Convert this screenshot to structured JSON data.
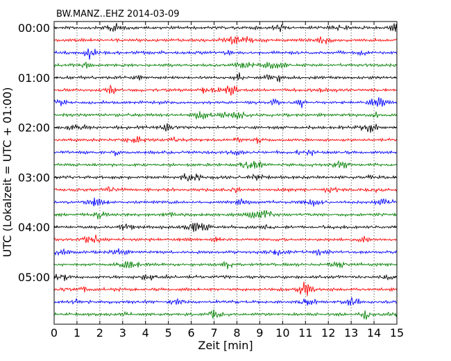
{
  "chart_data": {
    "type": "line",
    "title": "BW.MANZ..EHZ 2014-03-09",
    "xlabel": "Zeit  [min]",
    "ylabel": "UTC (Lokalzeit = UTC + 01:00)",
    "xlim": [
      0,
      15
    ],
    "x_ticks": [
      "0",
      "1",
      "2",
      "3",
      "4",
      "5",
      "6",
      "7",
      "8",
      "9",
      "10",
      "11",
      "12",
      "13",
      "14",
      "15"
    ],
    "y_ticks": [
      "00:00",
      "01:00",
      "02:00",
      "03:00",
      "04:00",
      "05:00"
    ],
    "grid": "vertical dotted",
    "trace_interval_min": 15,
    "trace_colors": [
      "#000000",
      "#ff0000",
      "#0000ff",
      "#007f00"
    ],
    "traces_count": 24
  }
}
